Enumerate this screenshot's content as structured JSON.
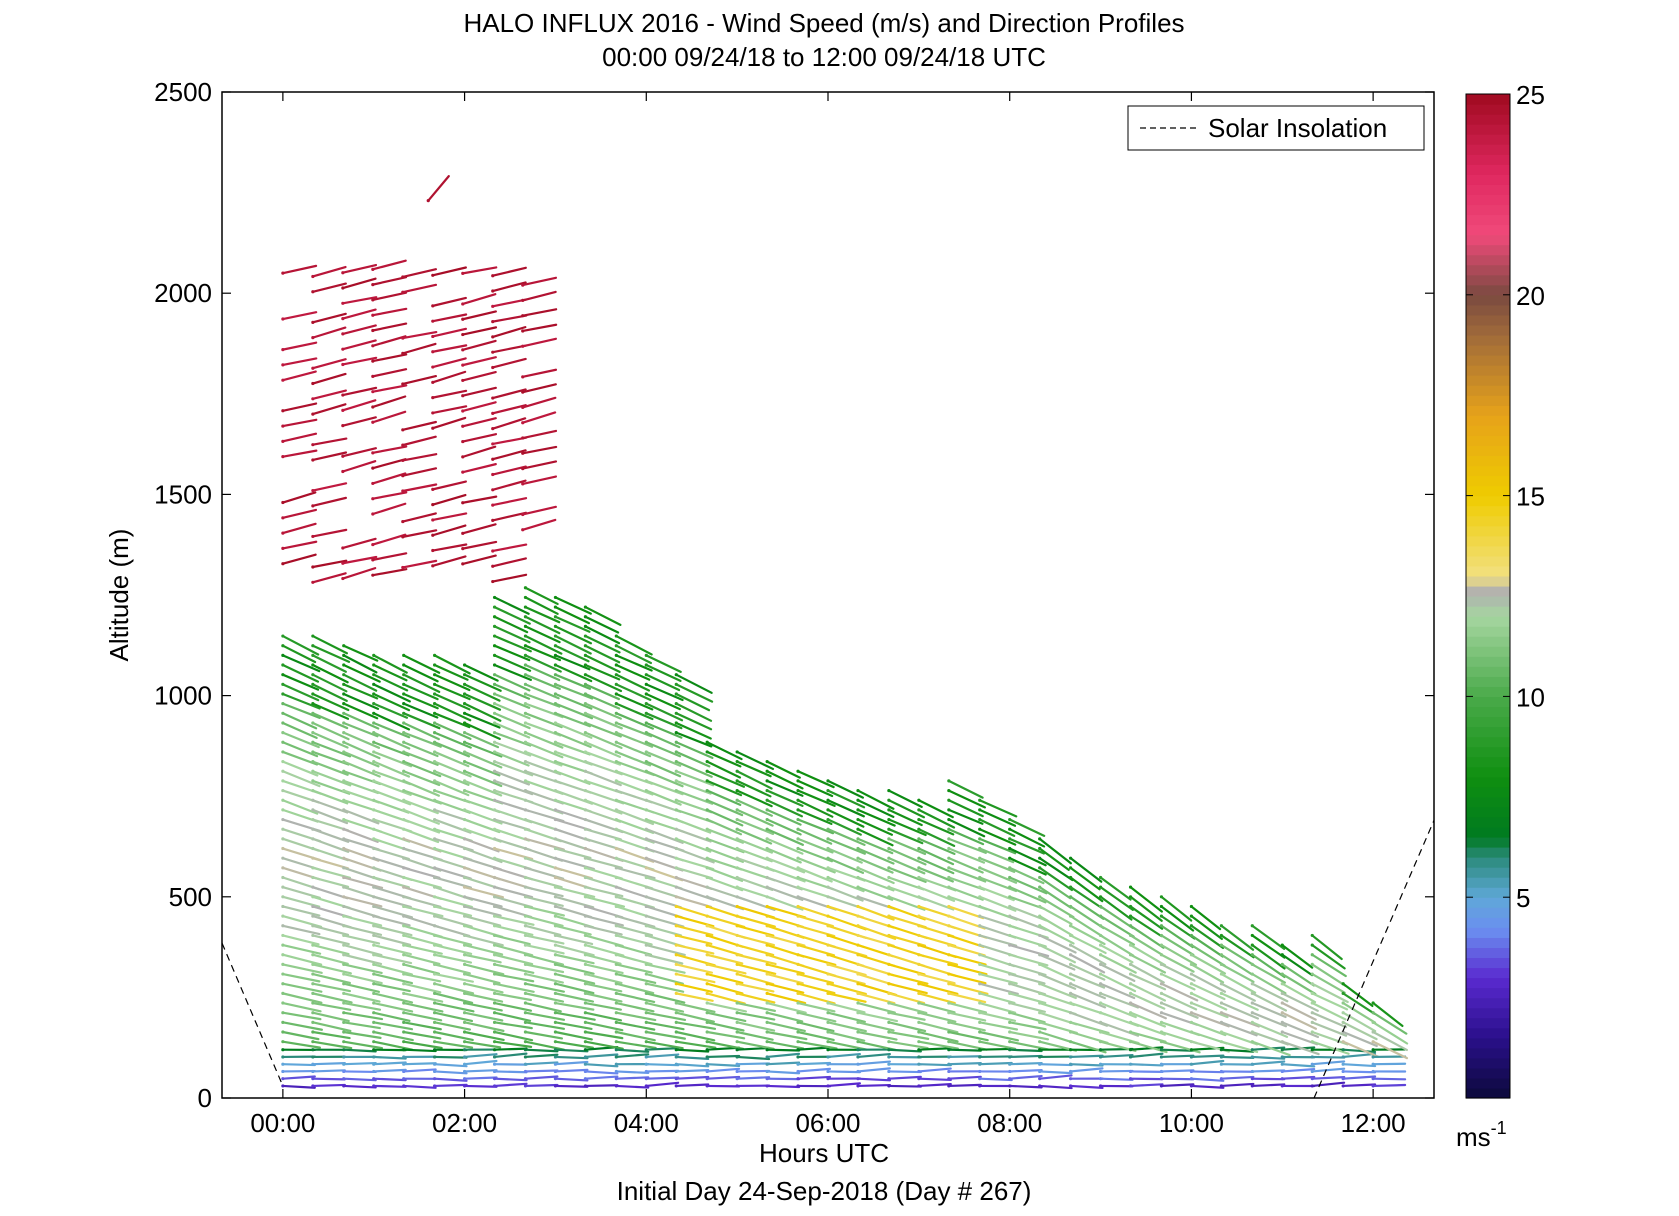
{
  "chart_data": {
    "type": "wind-barb profile (arrow field)",
    "title": "HALO INFLUX 2016 - Wind Speed (m/s) and Direction Profiles",
    "subtitle": "00:00 09/24/18 to 12:00 09/24/18  UTC",
    "xlabel": "Hours UTC",
    "ylabel": "Altitude (m)",
    "footer": "Initial Day 24-Sep-2018 (Day # 267)",
    "xlim": [
      -0.67,
      12.67
    ],
    "ylim": [
      0,
      2500
    ],
    "x_ticks": [
      {
        "value": 0,
        "label": "00:00"
      },
      {
        "value": 2,
        "label": "02:00"
      },
      {
        "value": 4,
        "label": "04:00"
      },
      {
        "value": 6,
        "label": "06:00"
      },
      {
        "value": 8,
        "label": "08:00"
      },
      {
        "value": 10,
        "label": "10:00"
      },
      {
        "value": 12,
        "label": "12:00"
      }
    ],
    "y_ticks": [
      {
        "value": 0,
        "label": "0"
      },
      {
        "value": 500,
        "label": "500"
      },
      {
        "value": 1000,
        "label": "1000"
      },
      {
        "value": 1500,
        "label": "1500"
      },
      {
        "value": 2000,
        "label": "2000"
      },
      {
        "value": 2500,
        "label": "2500"
      }
    ],
    "legend": {
      "label": "Solar Insolation",
      "placement": "top-right",
      "style": "dashed"
    },
    "colorbar": {
      "min": 0,
      "max": 25,
      "ticks": [
        {
          "value": 5,
          "label": "5"
        },
        {
          "value": 10,
          "label": "10"
        },
        {
          "value": 15,
          "label": "15"
        },
        {
          "value": 20,
          "label": "20"
        },
        {
          "value": 25,
          "label": "25"
        }
      ],
      "unit_label": "ms",
      "unit_exponent": "-1",
      "stops": [
        {
          "v": 0,
          "color": "#0b0a3a"
        },
        {
          "v": 1.5,
          "color": "#2a0f8a"
        },
        {
          "v": 3,
          "color": "#5a2ad0"
        },
        {
          "v": 4.2,
          "color": "#6b8ff0"
        },
        {
          "v": 5,
          "color": "#5fa8d8"
        },
        {
          "v": 6,
          "color": "#2a8a7a"
        },
        {
          "v": 6.5,
          "color": "#007a20"
        },
        {
          "v": 8,
          "color": "#0f8f10"
        },
        {
          "v": 10,
          "color": "#4aaa4a"
        },
        {
          "v": 12,
          "color": "#a6d6a0"
        },
        {
          "v": 12.6,
          "color": "#b0b0b0"
        },
        {
          "v": 13,
          "color": "#f2e080"
        },
        {
          "v": 15,
          "color": "#efcc00"
        },
        {
          "v": 17,
          "color": "#e6a21a"
        },
        {
          "v": 19,
          "color": "#a06a3a"
        },
        {
          "v": 20,
          "color": "#7a4a40"
        },
        {
          "v": 21.5,
          "color": "#f04a7a"
        },
        {
          "v": 23,
          "color": "#e02860"
        },
        {
          "v": 25,
          "color": "#a00a20"
        }
      ]
    },
    "solar_insolation": [
      {
        "x": -0.67,
        "y": 385
      },
      {
        "x": 0.0,
        "y": 30
      },
      {
        "x": 11.35,
        "y": 0
      },
      {
        "x": 12.67,
        "y": 690
      }
    ],
    "profile_times": [
      0.0,
      0.33,
      0.67,
      1.0,
      1.33,
      1.67,
      2.0,
      2.33,
      2.67,
      3.0,
      3.33,
      3.67,
      4.0,
      4.33,
      4.67,
      5.0,
      5.33,
      5.67,
      6.0,
      6.33,
      6.67,
      7.0,
      7.33,
      7.67,
      8.0,
      8.33,
      8.67,
      9.0,
      9.33,
      9.67,
      10.0,
      10.33,
      10.67,
      11.0,
      11.33,
      11.67,
      12.0
    ],
    "boundary_layer_top_m": [
      1170,
      1150,
      1130,
      1120,
      1110,
      1100,
      1090,
      1260,
      1280,
      1250,
      1230,
      1150,
      1100,
      1060,
      900,
      880,
      850,
      830,
      800,
      780,
      770,
      760,
      800,
      760,
      700,
      650,
      600,
      560,
      530,
      510,
      480,
      450,
      430,
      400,
      420,
      300,
      250
    ],
    "upper_layer_m": {
      "time_range": [
        0.0,
        2.8
      ],
      "altitude_range": [
        1270,
        2270
      ],
      "speed_ms": 24
    }
  }
}
